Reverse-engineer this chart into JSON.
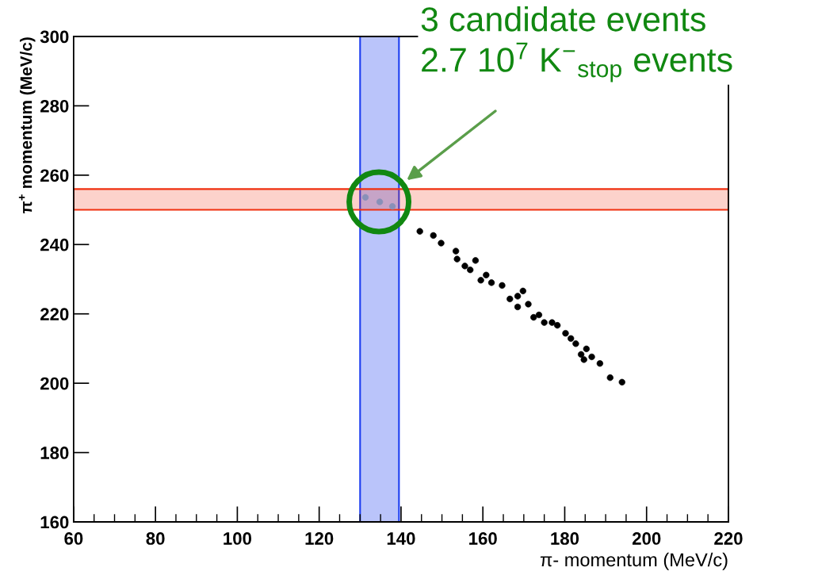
{
  "chart_data": {
    "type": "scatter",
    "xlabel": "π- momentum (MeV/c)",
    "ylabel": "π$^{+}$ momentum (MeV/c)",
    "xlim": [
      60,
      220
    ],
    "xticks": [
      60,
      80,
      100,
      120,
      140,
      160,
      180,
      200,
      220
    ],
    "ylim": [
      160,
      300
    ],
    "yticks": [
      160,
      180,
      200,
      220,
      240,
      260,
      280,
      300
    ],
    "grid": false,
    "legend": false,
    "marker": "circle",
    "bands": [
      {
        "axis": "x",
        "from": 130,
        "to": 139.5,
        "color": "#1a3cf0"
      },
      {
        "axis": "y",
        "from": 250,
        "to": 256,
        "color": "#f03010"
      }
    ],
    "series": [
      {
        "color": "#000000",
        "x": [
          144.6,
          147.9,
          149.8,
          153.4,
          153.7,
          155.6,
          156.9,
          158.2,
          159.5,
          160.8,
          162.1,
          164.7,
          166.6,
          168.5,
          168.5,
          169.8,
          171.1,
          172.4,
          173.7,
          175.0,
          176.9,
          178.2,
          180.2,
          181.5,
          182.7,
          184.0,
          184.7,
          185.3,
          186.6,
          188.6,
          191.1,
          194.0
        ],
        "values": [
          243.8,
          242.6,
          240.4,
          238.1,
          235.8,
          233.8,
          232.7,
          235.4,
          229.7,
          231.2,
          229.0,
          228.2,
          224.3,
          225.1,
          222.0,
          226.6,
          222.8,
          219.0,
          219.7,
          217.5,
          217.5,
          216.7,
          214.4,
          212.9,
          211.4,
          208.3,
          206.8,
          209.9,
          207.6,
          205.7,
          201.6,
          200.3
        ]
      },
      {
        "color": "#8890b8",
        "x": [
          131.3,
          134.8,
          137.9
        ],
        "values": [
          253.6,
          252.3,
          251.0
        ]
      }
    ],
    "annotations": [
      "3 candidate events\n2.7 10$^{7}$ K$^{−}$$_{stop}$ events"
    ]
  }
}
